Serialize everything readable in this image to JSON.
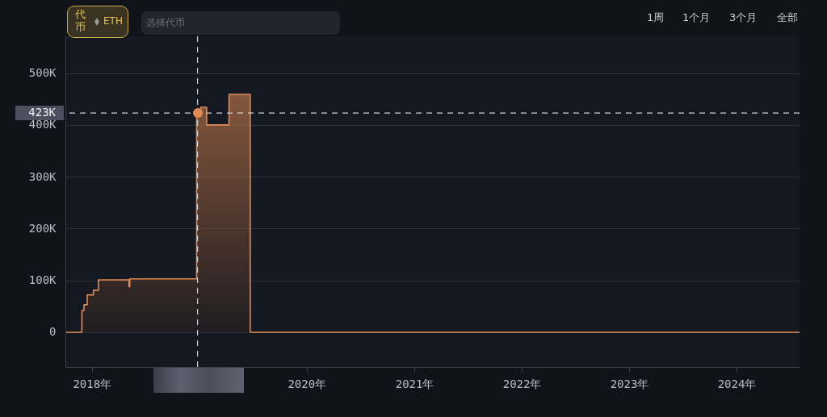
{
  "chart_data": {
    "type": "step",
    "x": [
      "2017-10-03",
      "2017-11-28",
      "2017-12-05",
      "2017-12-16",
      "2018-01-06",
      "2018-01-23",
      "2018-05-07",
      "2018-05-10",
      "2018-12-23",
      "2019-01-06",
      "2019-01-26",
      "2019-04-12",
      "2019-06-23",
      "2024-08-02"
    ],
    "series": [
      {
        "color": "#e08a55",
        "values": [
          0,
          42000,
          53000,
          72000,
          81000,
          101000,
          88000,
          103000,
          423000,
          434000,
          400000,
          459000,
          0,
          0
        ]
      }
    ],
    "xlim": [
      "2017-10-03",
      "2024-08-02"
    ],
    "xticks": [
      {
        "value": "2018",
        "label": "2018年"
      },
      {
        "value": "2019",
        "label": null
      },
      {
        "value": "2020",
        "label": "2020年"
      },
      {
        "value": "2021",
        "label": "2021年"
      },
      {
        "value": "2022",
        "label": "2022年"
      },
      {
        "value": "2023",
        "label": "2023年"
      },
      {
        "value": "2024",
        "label": "2024年"
      }
    ],
    "ylim": [
      -67000,
      571000
    ],
    "yticks": [
      {
        "value": 0,
        "label": "0"
      },
      {
        "value": 100000,
        "label": "100K"
      },
      {
        "value": 200000,
        "label": "200K"
      },
      {
        "value": 300000,
        "label": "300K"
      },
      {
        "value": 400000,
        "label": "400K"
      },
      {
        "value": 500000,
        "label": "500K"
      }
    ],
    "grid": "y",
    "ref_lines": [
      {
        "axis": "x",
        "value": "2018-12-26",
        "line_style": "dashed",
        "color": "#cfd2d8"
      },
      {
        "axis": "y",
        "value": 423000,
        "label": "423K",
        "line_style": "dashed",
        "color": "#cfd2d8"
      }
    ],
    "annotations": [
      "代币",
      "ETH",
      "选择代币",
      "1周",
      "1个月",
      "3个月",
      "全部"
    ]
  }
}
